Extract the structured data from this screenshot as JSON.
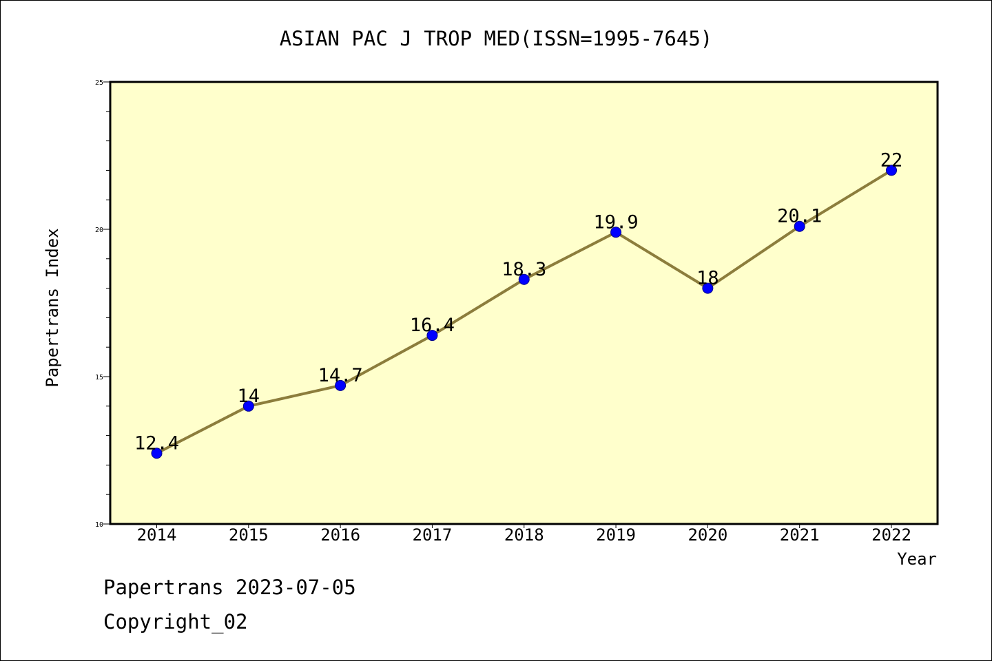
{
  "footer": {
    "line1": "Papertrans 2023-07-05",
    "line2": "Copyright_02"
  },
  "colors": {
    "plot_background": "#ffffcc",
    "line": "#8c7d3c",
    "marker": "#0000ff"
  },
  "chart_data": {
    "type": "line",
    "title": "ASIAN PAC J TROP MED(ISSN=1995-7645)",
    "xlabel": "Year",
    "ylabel": "Papertrans Index",
    "categories": [
      "2014",
      "2015",
      "2016",
      "2017",
      "2018",
      "2019",
      "2020",
      "2021",
      "2022"
    ],
    "series": [
      {
        "values": [
          12.4,
          14,
          14.7,
          16.4,
          18.3,
          19.9,
          18,
          20.1,
          22
        ],
        "labels": [
          "12.4",
          "14",
          "14.7",
          "16.4",
          "18.3",
          "19.9",
          "18",
          "20.1",
          "22"
        ]
      }
    ],
    "ylim": [
      10,
      25
    ],
    "yticks": [
      "10",
      "15",
      "20",
      "25"
    ],
    "grid": false,
    "legend": "none"
  }
}
